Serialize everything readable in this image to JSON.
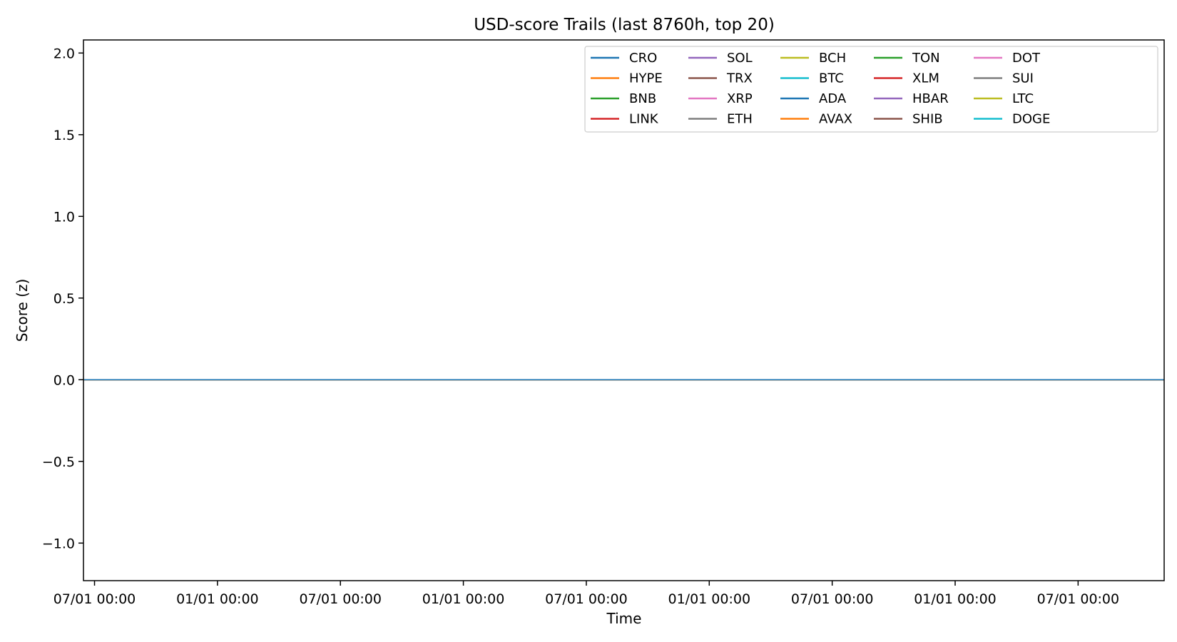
{
  "chart_data": {
    "type": "line",
    "title": "USD-score Trails (last 8760h, top 20)",
    "xlabel": "Time",
    "ylabel": "Score (z)",
    "ylim": [
      -1.23,
      2.08
    ],
    "yticks": [
      -1.0,
      -0.5,
      0.0,
      0.5,
      1.0,
      1.5,
      2.0
    ],
    "ytick_labels": [
      "−1.0",
      "−0.5",
      "0.0",
      "0.5",
      "1.0",
      "1.5",
      "2.0"
    ],
    "xlim": [
      -0.09,
      8.7
    ],
    "xticks": [
      0,
      1,
      2,
      3,
      4,
      5,
      6,
      7,
      8
    ],
    "xtick_labels": [
      "07/01 00:00",
      "01/01 00:00",
      "07/01 00:00",
      "01/01 00:00",
      "07/01 00:00",
      "01/01 00:00",
      "07/01 00:00",
      "01/01 00:00",
      "07/01 00:00"
    ],
    "grid": false,
    "legend": {
      "placement": "top-right",
      "columns": 6
    },
    "series": [
      {
        "name": "CRO",
        "color": "#1f77b4",
        "x": [
          -0.09,
          8.7
        ],
        "values": [
          0,
          0
        ]
      },
      {
        "name": "HYPE",
        "color": "#ff7f0e",
        "x": [
          -0.09,
          8.7
        ],
        "values": [
          0,
          0
        ]
      },
      {
        "name": "BNB",
        "color": "#2ca02c",
        "x": [
          -0.09,
          8.7
        ],
        "values": [
          0,
          0
        ]
      },
      {
        "name": "LINK",
        "color": "#d62728",
        "x": [
          -0.09,
          8.7
        ],
        "values": [
          0,
          0
        ]
      },
      {
        "name": "SOL",
        "color": "#9467bd",
        "x": [
          -0.09,
          8.7
        ],
        "values": [
          0,
          0
        ]
      },
      {
        "name": "TRX",
        "color": "#8c564b",
        "x": [
          -0.09,
          8.7
        ],
        "values": [
          0,
          0
        ]
      },
      {
        "name": "XRP",
        "color": "#e377c2",
        "x": [
          -0.09,
          8.7
        ],
        "values": [
          0,
          0
        ]
      },
      {
        "name": "ETH",
        "color": "#7f7f7f",
        "x": [
          -0.09,
          8.7
        ],
        "values": [
          0,
          0
        ]
      },
      {
        "name": "BCH",
        "color": "#bcbd22",
        "x": [
          -0.09,
          8.7
        ],
        "values": [
          0,
          0
        ]
      },
      {
        "name": "BTC",
        "color": "#17becf",
        "x": [
          -0.09,
          8.7
        ],
        "values": [
          0,
          0
        ]
      },
      {
        "name": "ADA",
        "color": "#1f77b4",
        "x": [
          -0.09,
          8.7
        ],
        "values": [
          0,
          0
        ]
      },
      {
        "name": "AVAX",
        "color": "#ff7f0e",
        "x": [
          -0.09,
          8.7
        ],
        "values": [
          0,
          0
        ]
      },
      {
        "name": "TON",
        "color": "#2ca02c",
        "x": [
          -0.09,
          8.7
        ],
        "values": [
          0,
          0
        ]
      },
      {
        "name": "XLM",
        "color": "#d62728",
        "x": [
          -0.09,
          8.7
        ],
        "values": [
          0,
          0
        ]
      },
      {
        "name": "HBAR",
        "color": "#9467bd",
        "x": [
          -0.09,
          8.7
        ],
        "values": [
          0,
          0
        ]
      },
      {
        "name": "SHIB",
        "color": "#8c564b",
        "x": [
          -0.09,
          8.7
        ],
        "values": [
          0,
          0
        ]
      },
      {
        "name": "DOT",
        "color": "#e377c2",
        "x": [
          -0.09,
          8.7
        ],
        "values": [
          0,
          0
        ]
      },
      {
        "name": "SUI",
        "color": "#7f7f7f",
        "x": [
          -0.09,
          8.7
        ],
        "values": [
          0,
          0
        ]
      },
      {
        "name": "LTC",
        "color": "#bcbd22",
        "x": [
          -0.09,
          8.7
        ],
        "values": [
          0,
          0
        ]
      },
      {
        "name": "DOGE",
        "color": "#17becf",
        "x": [
          -0.09,
          8.7
        ],
        "values": [
          0,
          0
        ]
      }
    ]
  }
}
